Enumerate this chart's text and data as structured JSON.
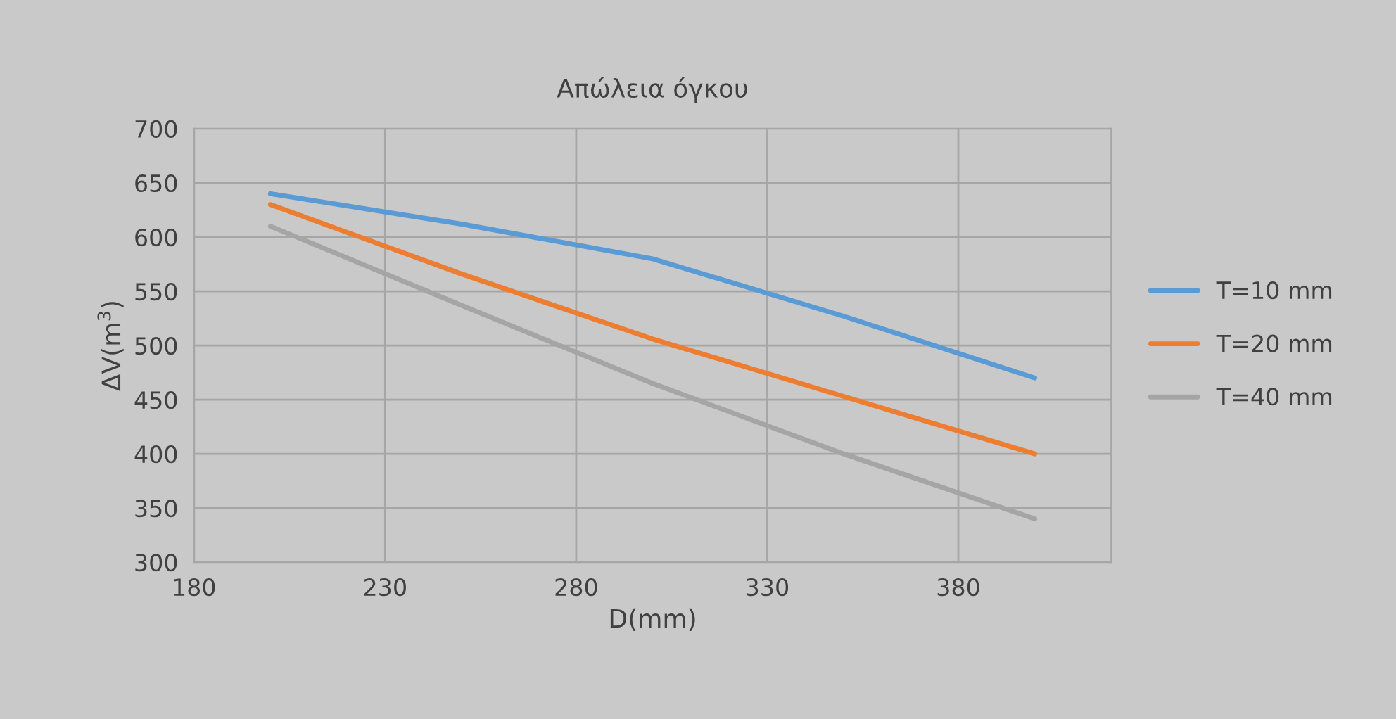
{
  "chart_data": {
    "type": "line",
    "title": "Απώλεια όγκου",
    "xlabel": "D(mm)",
    "ylabel": "ΔV(m$^{3}$)",
    "x": [
      200,
      250,
      300,
      350,
      400
    ],
    "series": [
      {
        "name": "T=10 mm",
        "color": "#5b9bd5",
        "values": [
          640,
          612,
          580,
          527,
          470
        ]
      },
      {
        "name": "T=20 mm",
        "color": "#ed7d31",
        "values": [
          630,
          566,
          506,
          453,
          400
        ]
      },
      {
        "name": "T=40 mm",
        "color": "#a5a5a5",
        "values": [
          610,
          537,
          465,
          400,
          340
        ]
      }
    ],
    "xlim": [
      180,
      420
    ],
    "xticks": [
      180,
      230,
      280,
      330,
      380
    ],
    "ylim": [
      300,
      700
    ],
    "yticks": [
      300,
      350,
      400,
      450,
      500,
      550,
      600,
      650,
      700
    ],
    "grid": true,
    "legend": "right",
    "marker": "none",
    "line_style": "solid"
  }
}
